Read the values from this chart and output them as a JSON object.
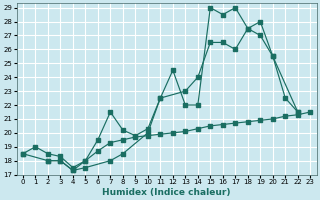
{
  "title": "",
  "xlabel": "Humidex (Indice chaleur)",
  "bg_color": "#cce8ef",
  "grid_color": "#ffffff",
  "line_color": "#1a6e62",
  "xlim": [
    -0.5,
    23.5
  ],
  "ylim": [
    17,
    29.3
  ],
  "xticks": [
    0,
    1,
    2,
    3,
    4,
    5,
    6,
    7,
    8,
    9,
    10,
    11,
    12,
    13,
    14,
    15,
    16,
    17,
    18,
    19,
    20,
    21,
    22,
    23
  ],
  "yticks": [
    17,
    18,
    19,
    20,
    21,
    22,
    23,
    24,
    25,
    26,
    27,
    28,
    29
  ],
  "line1_x": [
    0,
    1,
    2,
    3,
    4,
    5,
    6,
    7,
    8,
    9,
    10,
    11,
    12,
    13,
    14,
    15,
    16,
    17,
    18,
    19,
    20,
    21,
    22,
    23
  ],
  "line1_y": [
    18.5,
    19.0,
    18.5,
    18.3,
    17.5,
    18.0,
    18.7,
    19.3,
    19.5,
    19.7,
    19.8,
    19.9,
    20.0,
    20.1,
    20.3,
    20.5,
    20.6,
    20.7,
    20.8,
    20.9,
    21.0,
    21.2,
    21.3,
    21.5
  ],
  "line2_x": [
    0,
    2,
    3,
    4,
    5,
    6,
    7,
    8,
    9,
    10,
    11,
    13,
    14,
    15,
    16,
    17,
    18,
    19,
    20,
    21,
    22
  ],
  "line2_y": [
    18.5,
    18.0,
    18.0,
    17.3,
    18.0,
    19.5,
    21.5,
    20.2,
    19.8,
    20.3,
    22.5,
    23.0,
    24.0,
    26.5,
    26.5,
    26.0,
    27.5,
    28.0,
    25.5,
    22.5,
    21.5
  ],
  "line3_x": [
    2,
    3,
    4,
    5,
    7,
    8,
    10,
    11,
    12,
    13,
    14,
    15,
    16,
    17,
    18,
    19,
    20,
    22
  ],
  "line3_y": [
    18.0,
    18.0,
    17.3,
    17.5,
    18.0,
    18.5,
    20.0,
    22.5,
    24.5,
    22.0,
    22.0,
    29.0,
    28.5,
    29.0,
    27.5,
    27.0,
    25.5,
    21.5
  ]
}
